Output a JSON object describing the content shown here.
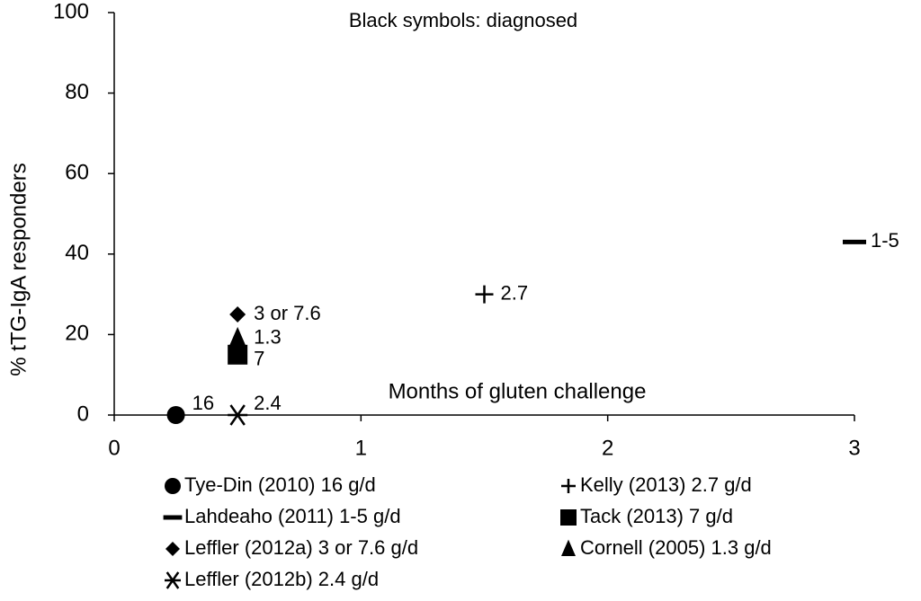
{
  "chart_data": {
    "type": "scatter",
    "title": "Black symbols: diagnosed",
    "x_label": "Months of gluten challenge",
    "y_label": "% tTG-IgA responders",
    "xlim": [
      0,
      3
    ],
    "xticks": [
      0,
      1,
      2,
      3
    ],
    "ylim": [
      0,
      100
    ],
    "yticks": [
      0,
      20,
      40,
      60,
      80,
      100
    ],
    "series": [
      {
        "name": "Tye-Din (2010) 16 g/d",
        "marker": "circle",
        "color": "#000000",
        "x": [
          0.25
        ],
        "values": [
          0
        ],
        "point_labels": [
          "16"
        ]
      },
      {
        "name": "Kelly (2013) 2.7 g/d",
        "marker": "plus",
        "color": "#000000",
        "x": [
          1.5
        ],
        "values": [
          30
        ],
        "point_labels": [
          "2.7"
        ]
      },
      {
        "name": "Lahdeaho (2011) 1-5 g/d",
        "marker": "dash",
        "color": "#000000",
        "x": [
          3
        ],
        "values": [
          43
        ],
        "point_labels": [
          "1-5"
        ]
      },
      {
        "name": "Tack (2013) 7 g/d",
        "marker": "square",
        "color": "#000000",
        "x": [
          0.5
        ],
        "values": [
          15
        ],
        "point_labels": [
          "7"
        ]
      },
      {
        "name": "Leffler (2012a) 3 or 7.6 g/d",
        "marker": "diamond",
        "color": "#000000",
        "x": [
          0.5
        ],
        "values": [
          25
        ],
        "point_labels": [
          "3 or 7.6"
        ]
      },
      {
        "name": "Cornell (2005) 1.3 g/d",
        "marker": "triangle",
        "color": "#000000",
        "x": [
          0.5
        ],
        "values": [
          19
        ],
        "point_labels": [
          "1.3"
        ]
      },
      {
        "name": "Leffler (2012b) 2.4 g/d",
        "marker": "asterisk",
        "color": "#000000",
        "x": [
          0.5
        ],
        "values": [
          0
        ],
        "point_labels": [
          "2.4"
        ]
      }
    ]
  }
}
